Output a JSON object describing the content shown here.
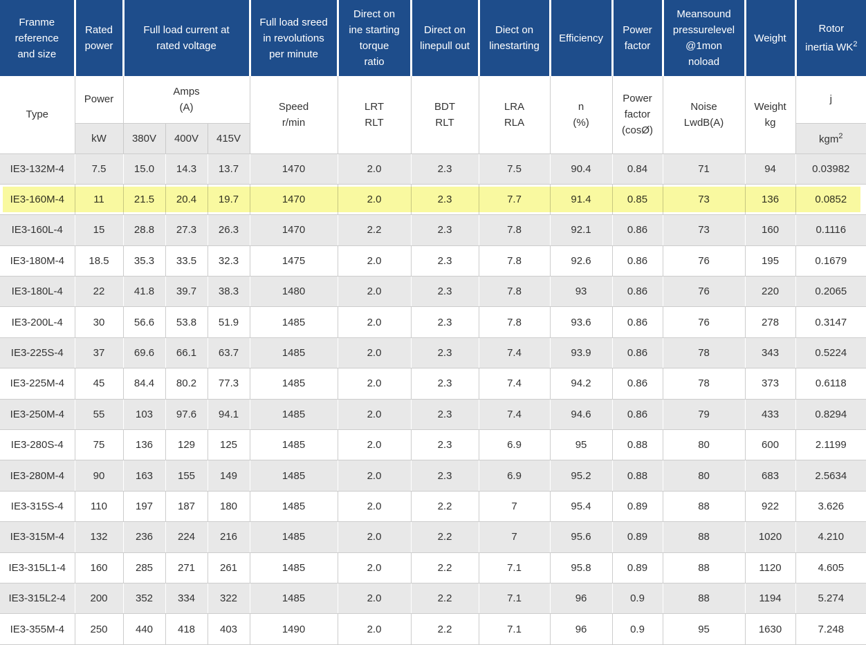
{
  "colors": {
    "header_blue": "#1e4d8b",
    "row_gray": "#e8e8e8",
    "highlight_yellow": "#f9f9a0",
    "text_dark": "#333333",
    "header_text": "#ffffff",
    "border_gray": "#cccccc"
  },
  "header": {
    "row1": {
      "frame_reference": "Franme\nreference\nand size",
      "rated_power": "Rated\npower",
      "full_load_current": "Full load current at\nrated voltage",
      "full_load_speed": "Full load sreed\nin revolutions\nper minute",
      "direct_torque": "Direct on\nine starting\ntorque\nratio",
      "direct_pullout": "Direct on\nlinepull out",
      "direct_starting": "Diect on\nlinestarting",
      "efficiency": "Efficiency",
      "power_factor": "Power\nfactor",
      "sound": "Meansound\npressurelevel\n@1mon\nnoload",
      "weight": "Weight",
      "rotor_inertia": "Rotor\ninertia WK",
      "rotor_inertia_sup": "2"
    },
    "row2": {
      "type": "Type",
      "power": "Power",
      "amps": "Amps\n(A)",
      "speed": "Speed\nr/min",
      "lrt": "LRT\nRLT",
      "bdt": "BDT\nRLT",
      "lra": "LRA\nRLA",
      "n": "n\n(%)",
      "cos": "Power\nfactor\n(cosØ)",
      "noise": "Noise\nLwdB(A)",
      "weight_kg": "Weight\nkg",
      "j": "j"
    },
    "row3": {
      "kw": "kW",
      "v380": "380V",
      "v400": "400V",
      "v415": "415V",
      "kgm": "kgm",
      "kgm_sup": "2"
    }
  },
  "chart_data": {
    "type": "table",
    "title": "IE3 4-pole motor specification table",
    "columns": [
      "Type",
      "Power kW",
      "Amps (A) 380V",
      "Amps (A) 400V",
      "Amps (A) 415V",
      "Speed r/min",
      "LRT RLT",
      "BDT RLT",
      "LRA RLA",
      "n (%)",
      "Power factor (cosØ)",
      "Noise LwdB(A)",
      "Weight kg",
      "j kgm²"
    ],
    "highlight_row_index": 1,
    "highlighted_type": "IE3-160M-4",
    "rows": [
      [
        "IE3-132M-4",
        "7.5",
        "15.0",
        "14.3",
        "13.7",
        "1470",
        "2.0",
        "2.3",
        "7.5",
        "90.4",
        "0.84",
        "71",
        "94",
        "0.03982"
      ],
      [
        "IE3-160M-4",
        "11",
        "21.5",
        "20.4",
        "19.7",
        "1470",
        "2.0",
        "2.3",
        "7.7",
        "91.4",
        "0.85",
        "73",
        "136",
        "0.0852"
      ],
      [
        "IE3-160L-4",
        "15",
        "28.8",
        "27.3",
        "26.3",
        "1470",
        "2.2",
        "2.3",
        "7.8",
        "92.1",
        "0.86",
        "73",
        "160",
        "0.1116"
      ],
      [
        "IE3-180M-4",
        "18.5",
        "35.3",
        "33.5",
        "32.3",
        "1475",
        "2.0",
        "2.3",
        "7.8",
        "92.6",
        "0.86",
        "76",
        "195",
        "0.1679"
      ],
      [
        "IE3-180L-4",
        "22",
        "41.8",
        "39.7",
        "38.3",
        "1480",
        "2.0",
        "2.3",
        "7.8",
        "93",
        "0.86",
        "76",
        "220",
        "0.2065"
      ],
      [
        "IE3-200L-4",
        "30",
        "56.6",
        "53.8",
        "51.9",
        "1485",
        "2.0",
        "2.3",
        "7.8",
        "93.6",
        "0.86",
        "76",
        "278",
        "0.3147"
      ],
      [
        "IE3-225S-4",
        "37",
        "69.6",
        "66.1",
        "63.7",
        "1485",
        "2.0",
        "2.3",
        "7.4",
        "93.9",
        "0.86",
        "78",
        "343",
        "0.5224"
      ],
      [
        "IE3-225M-4",
        "45",
        "84.4",
        "80.2",
        "77.3",
        "1485",
        "2.0",
        "2.3",
        "7.4",
        "94.2",
        "0.86",
        "78",
        "373",
        "0.6118"
      ],
      [
        "IE3-250M-4",
        "55",
        "103",
        "97.6",
        "94.1",
        "1485",
        "2.0",
        "2.3",
        "7.4",
        "94.6",
        "0.86",
        "79",
        "433",
        "0.8294"
      ],
      [
        "IE3-280S-4",
        "75",
        "136",
        "129",
        "125",
        "1485",
        "2.0",
        "2.3",
        "6.9",
        "95",
        "0.88",
        "80",
        "600",
        "2.1199"
      ],
      [
        "IE3-280M-4",
        "90",
        "163",
        "155",
        "149",
        "1485",
        "2.0",
        "2.3",
        "6.9",
        "95.2",
        "0.88",
        "80",
        "683",
        "2.5634"
      ],
      [
        "IE3-315S-4",
        "110",
        "197",
        "187",
        "180",
        "1485",
        "2.0",
        "2.2",
        "7",
        "95.4",
        "0.89",
        "88",
        "922",
        "3.626"
      ],
      [
        "IE3-315M-4",
        "132",
        "236",
        "224",
        "216",
        "1485",
        "2.0",
        "2.2",
        "7",
        "95.6",
        "0.89",
        "88",
        "1020",
        "4.210"
      ],
      [
        "IE3-315L1-4",
        "160",
        "285",
        "271",
        "261",
        "1485",
        "2.0",
        "2.2",
        "7.1",
        "95.8",
        "0.89",
        "88",
        "1120",
        "4.605"
      ],
      [
        "IE3-315L2-4",
        "200",
        "352",
        "334",
        "322",
        "1485",
        "2.0",
        "2.2",
        "7.1",
        "96",
        "0.9",
        "88",
        "1194",
        "5.274"
      ],
      [
        "IE3-355M-4",
        "250",
        "440",
        "418",
        "403",
        "1490",
        "2.0",
        "2.2",
        "7.1",
        "96",
        "0.9",
        "95",
        "1630",
        "7.248"
      ]
    ]
  }
}
